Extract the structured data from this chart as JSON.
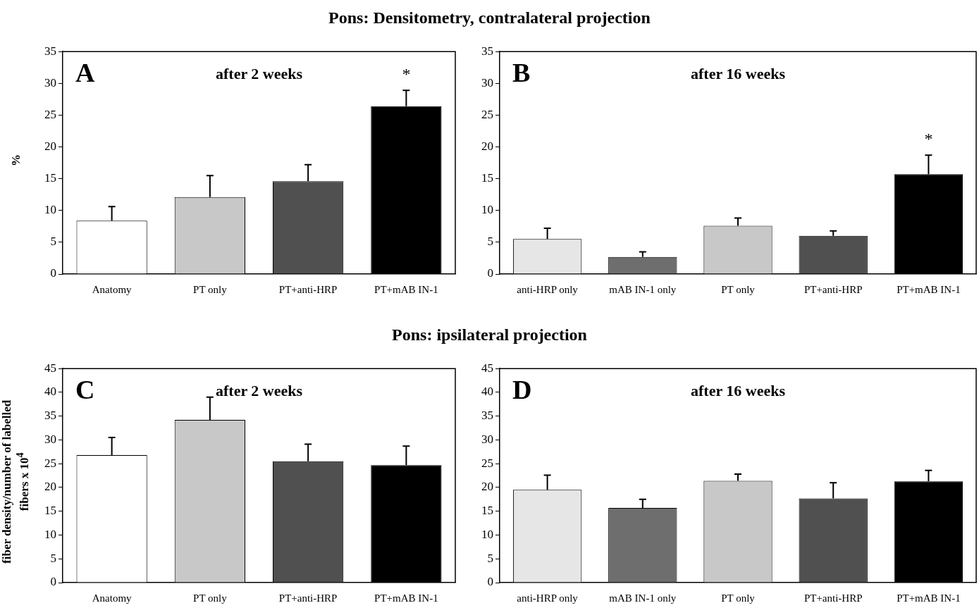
{
  "chart_data": [
    {
      "type": "bar",
      "title": "Pons: Densitometry, contralateral projection",
      "subtitle": "after 2 weeks",
      "ylabel": "%",
      "categories": [
        "Anatomy",
        "PT only",
        "PT+anti-HRP",
        "PT+mAB IN-1"
      ],
      "values": [
        8.4,
        12.1,
        14.6,
        26.4
      ],
      "colors": [
        "#ffffff",
        "#c8c8c8",
        "#505050",
        "#000000"
      ],
      "errors": [
        [
          8.4,
          10.6
        ],
        [
          12.1,
          15.5
        ],
        [
          14.6,
          17.2
        ],
        [
          26.4,
          28.9
        ]
      ],
      "ylim": [
        0,
        35
      ],
      "yticks": [
        0,
        5,
        10,
        15,
        20,
        25,
        30,
        35
      ],
      "grid": false,
      "legend": false,
      "annotations": [
        "A",
        "*"
      ]
    },
    {
      "type": "bar",
      "subtitle": "after 16 weeks",
      "categories": [
        "anti-HRP only",
        "mAB IN-1 only",
        "PT only",
        "PT+anti-HRP",
        "PT+mAB IN-1"
      ],
      "values": [
        5.5,
        2.7,
        7.6,
        6.0,
        15.7
      ],
      "colors": [
        "#e6e6e6",
        "#6e6e6e",
        "#c8c8c8",
        "#505050",
        "#000000"
      ],
      "errors": [
        [
          5.5,
          7.2
        ],
        [
          2.7,
          3.5
        ],
        [
          7.6,
          8.8
        ],
        [
          6.0,
          6.8
        ],
        [
          15.7,
          18.7
        ]
      ],
      "ylim": [
        0,
        35
      ],
      "yticks": [
        0,
        5,
        10,
        15,
        20,
        25,
        30,
        35
      ],
      "grid": false,
      "legend": false,
      "annotations": [
        "B",
        "*"
      ]
    },
    {
      "type": "bar",
      "title": "Pons: ipsilateral projection",
      "subtitle": "after 2 weeks",
      "ylabel": "fiber density/number of labelled fibers x 10$^{4}$",
      "categories": [
        "Anatomy",
        "PT only",
        "PT+anti-HRP",
        "PT+mAB IN-1"
      ],
      "values": [
        26.8,
        34.2,
        25.5,
        24.7
      ],
      "colors": [
        "#ffffff",
        "#c8c8c8",
        "#505050",
        "#000000"
      ],
      "errors": [
        [
          26.8,
          30.5
        ],
        [
          34.2,
          39.0
        ],
        [
          25.5,
          29.1
        ],
        [
          24.7,
          28.7
        ]
      ],
      "ylim": [
        0,
        45
      ],
      "yticks": [
        0,
        5,
        10,
        15,
        20,
        25,
        30,
        35,
        40,
        45
      ],
      "grid": false,
      "legend": false,
      "annotations": [
        "C"
      ]
    },
    {
      "type": "bar",
      "subtitle": "after 16 weeks",
      "categories": [
        "anti-HRP only",
        "mAB IN-1 only",
        "PT only",
        "PT+anti-HRP",
        "PT+mAB IN-1"
      ],
      "values": [
        19.5,
        15.7,
        21.4,
        17.7,
        21.3
      ],
      "colors": [
        "#e6e6e6",
        "#6e6e6e",
        "#c8c8c8",
        "#505050",
        "#000000"
      ],
      "errors": [
        [
          19.5,
          22.6
        ],
        [
          15.7,
          17.5
        ],
        [
          21.4,
          22.8
        ],
        [
          17.7,
          21.0
        ],
        [
          21.3,
          23.6
        ]
      ],
      "ylim": [
        0,
        45
      ],
      "yticks": [
        0,
        5,
        10,
        15,
        20,
        25,
        30,
        35,
        40,
        45
      ],
      "grid": false,
      "legend": false,
      "annotations": [
        "D"
      ]
    }
  ]
}
